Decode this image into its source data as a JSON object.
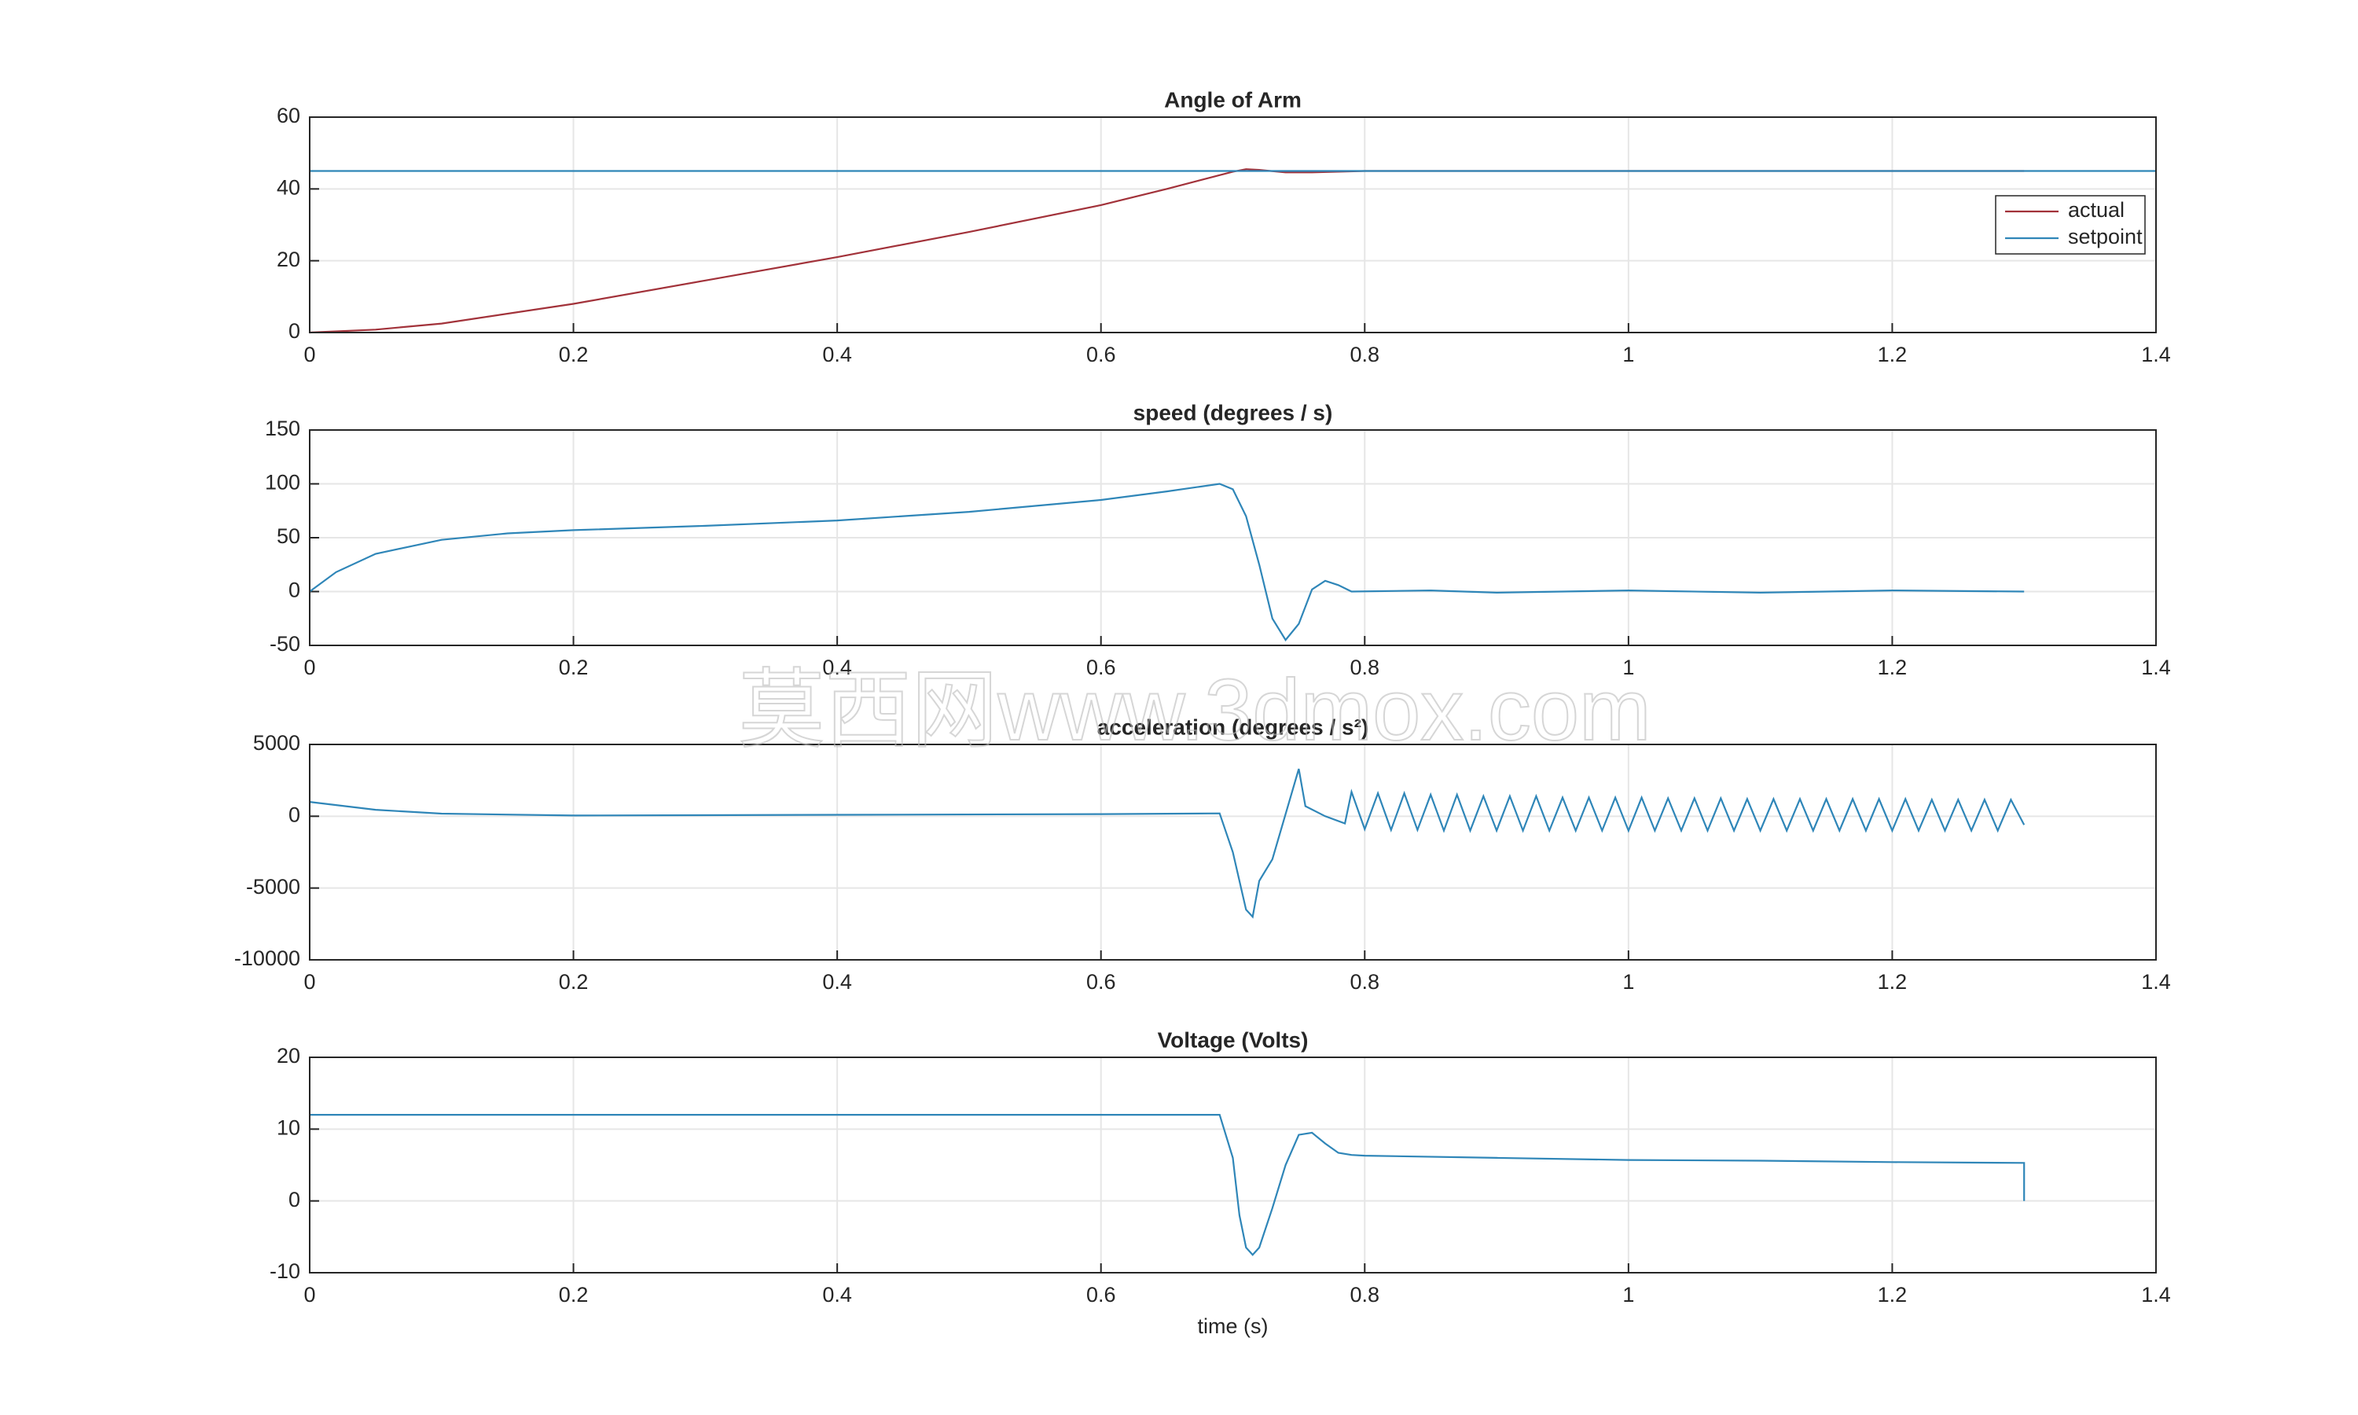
{
  "watermark": "莫西网www.3dmox.com",
  "chart_data": [
    {
      "type": "line",
      "title": "Angle of Arm",
      "xlim": [
        0,
        1.4
      ],
      "xticks": [
        0,
        0.2,
        0.4,
        0.6,
        0.8,
        1,
        1.2,
        1.4
      ],
      "ylim": [
        0,
        60
      ],
      "yticks": [
        0,
        20,
        40,
        60
      ],
      "grid": true,
      "legend": "northeast",
      "series": [
        {
          "name": "actual",
          "color": "#a2323a",
          "x": [
            0,
            0.05,
            0.1,
            0.2,
            0.3,
            0.4,
            0.5,
            0.6,
            0.65,
            0.7,
            0.71,
            0.72,
            0.74,
            0.76,
            0.8,
            1.0,
            1.3
          ],
          "values": [
            0,
            0.8,
            2.5,
            8,
            14.5,
            21,
            28,
            35.5,
            40,
            44.8,
            45.5,
            45.3,
            44.6,
            44.6,
            45,
            45,
            45
          ]
        },
        {
          "name": "setpoint",
          "color": "#2f86b8",
          "x": [
            0,
            1.4
          ],
          "values": [
            45,
            45
          ]
        }
      ]
    },
    {
      "type": "line",
      "title": "speed (degrees / s)",
      "xlim": [
        0,
        1.4
      ],
      "xticks": [
        0,
        0.2,
        0.4,
        0.6,
        0.8,
        1,
        1.2,
        1.4
      ],
      "ylim": [
        -50,
        150
      ],
      "yticks": [
        -50,
        0,
        50,
        100,
        150
      ],
      "grid": true,
      "series": [
        {
          "name": null,
          "color": "#2f86b8",
          "x": [
            0,
            0.02,
            0.05,
            0.1,
            0.15,
            0.2,
            0.3,
            0.4,
            0.5,
            0.6,
            0.65,
            0.69,
            0.7,
            0.71,
            0.72,
            0.73,
            0.74,
            0.75,
            0.76,
            0.77,
            0.78,
            0.79,
            0.85,
            0.9,
            1.0,
            1.1,
            1.2,
            1.3
          ],
          "values": [
            0,
            18,
            35,
            48,
            54,
            57,
            61,
            66,
            74,
            85,
            93,
            100,
            95,
            70,
            25,
            -25,
            -45,
            -30,
            2,
            10,
            6,
            0,
            1,
            -1,
            1,
            -1,
            1,
            0
          ]
        }
      ]
    },
    {
      "type": "line",
      "title": "acceleration (degrees / s²)",
      "xlim": [
        0,
        1.4
      ],
      "xticks": [
        0,
        0.2,
        0.4,
        0.6,
        0.8,
        1,
        1.2,
        1.4
      ],
      "ylim": [
        -10000,
        5000
      ],
      "yticks": [
        -10000,
        -5000,
        0,
        5000
      ],
      "grid": true,
      "series": [
        {
          "name": null,
          "color": "#2f86b8",
          "x": [
            0,
            0.05,
            0.1,
            0.2,
            0.4,
            0.6,
            0.69,
            0.7,
            0.71,
            0.715,
            0.72,
            0.73,
            0.75,
            0.755,
            0.77,
            0.785,
            0.79,
            0.8,
            0.81,
            0.82,
            0.83,
            0.84,
            0.85,
            0.86,
            0.87,
            0.88,
            0.89,
            0.9,
            0.91,
            0.92,
            0.93,
            0.94,
            0.95,
            0.96,
            0.97,
            0.98,
            0.99,
            1.0,
            1.01,
            1.02,
            1.03,
            1.04,
            1.05,
            1.06,
            1.07,
            1.08,
            1.09,
            1.1,
            1.11,
            1.12,
            1.13,
            1.14,
            1.15,
            1.16,
            1.17,
            1.18,
            1.19,
            1.2,
            1.21,
            1.22,
            1.23,
            1.24,
            1.25,
            1.26,
            1.27,
            1.28,
            1.29,
            1.3
          ],
          "values": [
            1000,
            450,
            180,
            50,
            100,
            150,
            200,
            -2500,
            -6500,
            -7000,
            -4500,
            -3000,
            3300,
            700,
            0,
            -500,
            1700,
            -900,
            1600,
            -950,
            1600,
            -950,
            1500,
            -1000,
            1500,
            -1000,
            1400,
            -1000,
            1400,
            -1000,
            1400,
            -1000,
            1300,
            -1000,
            1300,
            -1000,
            1300,
            -1000,
            1300,
            -1000,
            1250,
            -1000,
            1250,
            -1000,
            1250,
            -1000,
            1200,
            -1000,
            1200,
            -1000,
            1200,
            -1000,
            1200,
            -1000,
            1200,
            -1000,
            1200,
            -1000,
            1200,
            -1000,
            1150,
            -1000,
            1150,
            -1000,
            1150,
            -1000,
            1150,
            -600
          ]
        }
      ]
    },
    {
      "type": "line",
      "title": "Voltage (Volts)",
      "xlabel": "time (s)",
      "xlim": [
        0,
        1.4
      ],
      "xticks": [
        0,
        0.2,
        0.4,
        0.6,
        0.8,
        1,
        1.2,
        1.4
      ],
      "ylim": [
        -10,
        20
      ],
      "yticks": [
        -10,
        0,
        10,
        20
      ],
      "grid": true,
      "series": [
        {
          "name": null,
          "color": "#2f86b8",
          "x": [
            0,
            0.69,
            0.7,
            0.705,
            0.71,
            0.715,
            0.72,
            0.73,
            0.74,
            0.75,
            0.76,
            0.77,
            0.78,
            0.79,
            0.8,
            0.9,
            1.0,
            1.1,
            1.2,
            1.3,
            1.3
          ],
          "values": [
            12,
            12,
            6,
            -2,
            -6.5,
            -7.5,
            -6.5,
            -1,
            5,
            9.2,
            9.5,
            8,
            6.7,
            6.4,
            6.3,
            6,
            5.7,
            5.6,
            5.4,
            5.3,
            0
          ]
        }
      ]
    }
  ]
}
